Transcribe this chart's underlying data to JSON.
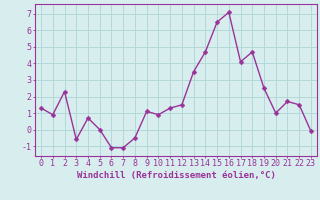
{
  "x": [
    0,
    1,
    2,
    3,
    4,
    5,
    6,
    7,
    8,
    9,
    10,
    11,
    12,
    13,
    14,
    15,
    16,
    17,
    18,
    19,
    20,
    21,
    22,
    23
  ],
  "y": [
    1.3,
    0.9,
    2.3,
    -0.6,
    0.7,
    0.0,
    -1.1,
    -1.1,
    -0.5,
    1.1,
    0.9,
    1.3,
    1.5,
    3.5,
    4.7,
    6.5,
    7.1,
    4.1,
    4.7,
    2.5,
    1.0,
    1.7,
    1.5,
    -0.1
  ],
  "line_color": "#993399",
  "marker": "D",
  "marker_size": 2.5,
  "linewidth": 1.0,
  "bg_color": "#d8eeee",
  "grid_color": "#b2d8d8",
  "xlabel": "Windchill (Refroidissement éolien,°C)",
  "xlabel_fontsize": 6.5,
  "xlabel_color": "#993399",
  "ylabel_ticks": [
    -1,
    0,
    1,
    2,
    3,
    4,
    5,
    6,
    7
  ],
  "xlim": [
    -0.5,
    23.5
  ],
  "ylim": [
    -1.6,
    7.6
  ],
  "tick_fontsize": 6.0,
  "tick_color": "#993399",
  "spine_color": "#993399",
  "xtick_labels": [
    "0",
    "1",
    "2",
    "3",
    "4",
    "5",
    "6",
    "7",
    "8",
    "9",
    "10",
    "11",
    "12",
    "13",
    "14",
    "15",
    "16",
    "17",
    "18",
    "19",
    "20",
    "21",
    "22",
    "23"
  ]
}
